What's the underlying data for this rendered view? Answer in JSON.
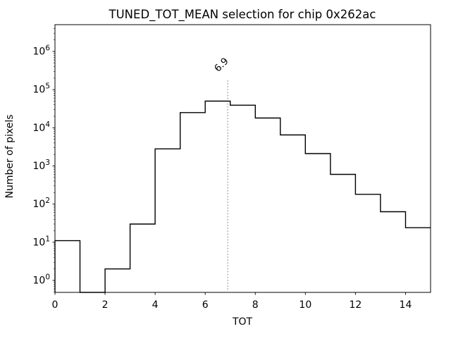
{
  "chart_data": {
    "type": "bar",
    "subtype": "step-histogram",
    "title": "TUNED_TOT_MEAN selection for chip 0x262ac",
    "xlabel": "TOT",
    "ylabel": "Number of pixels",
    "y_scale": "log",
    "xlim": [
      0,
      15
    ],
    "ylim": [
      0.49,
      5000000
    ],
    "grid": false,
    "legend": null,
    "bin_edges": [
      0,
      1,
      2,
      3,
      4,
      5,
      6,
      7,
      8,
      9,
      10,
      11,
      12,
      13,
      14,
      15
    ],
    "counts": [
      11,
      0,
      2,
      30,
      2800,
      25000,
      50000,
      39000,
      18000,
      6500,
      2100,
      600,
      180,
      63,
      24
    ],
    "x_ticks": [
      0,
      2,
      4,
      6,
      8,
      10,
      12,
      14
    ],
    "y_tick_exponents": [
      0,
      1,
      2,
      3,
      4,
      5,
      6
    ],
    "vline": {
      "x": 6.9,
      "label": "6.9",
      "style": "dotted",
      "color": "#9e9e9e",
      "label_color": "#949494"
    },
    "colors": {
      "line": "#000000",
      "background": "#ffffff",
      "axis": "#000000"
    }
  }
}
